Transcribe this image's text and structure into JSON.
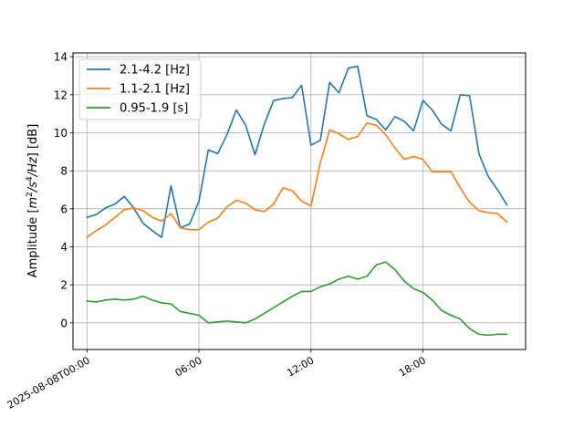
{
  "chart_data": {
    "type": "line",
    "ylabel": "Amplitude [m²/s⁴/Hz] [dB]",
    "ylabel_parts": {
      "prefix": "Amplitude [",
      "m": "m",
      "s": "/s",
      "hz": "/Hz",
      "suffix": "] [dB]",
      "exp2": "2",
      "exp4": "4"
    },
    "xlim": [
      -0.75,
      23.5
    ],
    "ylim": [
      -1.4,
      14.2
    ],
    "yticks": [
      0,
      2,
      4,
      6,
      8,
      10,
      12,
      14
    ],
    "ytick_labels": [
      "0",
      "2",
      "4",
      "6",
      "8",
      "10",
      "12",
      "14"
    ],
    "xticks": [
      0,
      6,
      12,
      18
    ],
    "xtick_labels": [
      "2025-08-08T00:00",
      "06:00",
      "12:00",
      "18:00"
    ],
    "grid": true,
    "legend_position": "upper-left",
    "x": [
      0,
      0.5,
      1,
      1.5,
      2,
      2.5,
      3,
      3.5,
      4,
      4.5,
      5,
      5.5,
      6,
      6.5,
      7,
      7.5,
      8,
      8.5,
      9,
      9.5,
      10,
      10.5,
      11,
      11.5,
      12,
      12.5,
      13,
      13.5,
      14,
      14.5,
      15,
      15.5,
      16,
      16.5,
      17,
      17.5,
      18,
      18.5,
      19,
      19.5,
      20,
      20.5,
      21,
      21.5,
      22,
      22.5,
      23
    ],
    "series": [
      {
        "name": "2.1-4.2 [Hz]",
        "color": "#1f77b4",
        "values": [
          5.55,
          5.7,
          6.05,
          6.25,
          6.65,
          6.05,
          5.25,
          4.85,
          4.5,
          7.2,
          5.0,
          5.2,
          6.4,
          9.1,
          8.9,
          9.9,
          11.2,
          10.4,
          8.85,
          10.45,
          11.7,
          11.8,
          11.85,
          12.5,
          9.35,
          9.6,
          12.65,
          12.1,
          13.4,
          13.5,
          10.9,
          10.7,
          10.15,
          10.85,
          10.6,
          10.1,
          11.7,
          11.2,
          10.45,
          10.1,
          12.0,
          11.95,
          8.9,
          7.7,
          7.0,
          6.2,
          null
        ]
      },
      {
        "name": "1.1-2.1 [Hz]",
        "color": "#ff7f0e",
        "values": [
          4.5,
          4.85,
          5.15,
          5.55,
          5.95,
          6.05,
          5.9,
          5.55,
          5.35,
          5.75,
          5.0,
          4.9,
          4.9,
          5.3,
          5.5,
          6.1,
          6.45,
          6.3,
          5.95,
          5.85,
          6.25,
          7.1,
          6.95,
          6.4,
          6.15,
          8.4,
          10.15,
          9.95,
          9.65,
          9.8,
          10.5,
          10.4,
          9.9,
          9.2,
          8.6,
          8.75,
          8.6,
          7.95,
          7.95,
          7.95,
          7.1,
          6.35,
          5.9,
          5.8,
          5.75,
          5.3,
          null
        ]
      },
      {
        "name": "0.95-1.9 [s]",
        "color": "#2ca02c",
        "values": [
          1.15,
          1.1,
          1.2,
          1.25,
          1.2,
          1.25,
          1.4,
          1.2,
          1.05,
          1.0,
          0.6,
          0.5,
          0.4,
          0.0,
          0.05,
          0.1,
          0.05,
          0.0,
          0.2,
          0.5,
          0.8,
          1.1,
          1.4,
          1.65,
          1.65,
          1.9,
          2.05,
          2.3,
          2.45,
          2.3,
          2.45,
          3.05,
          3.2,
          2.8,
          2.2,
          1.8,
          1.6,
          1.2,
          0.65,
          0.4,
          0.2,
          -0.3,
          -0.6,
          -0.65,
          -0.6,
          -0.6,
          null
        ]
      }
    ]
  }
}
